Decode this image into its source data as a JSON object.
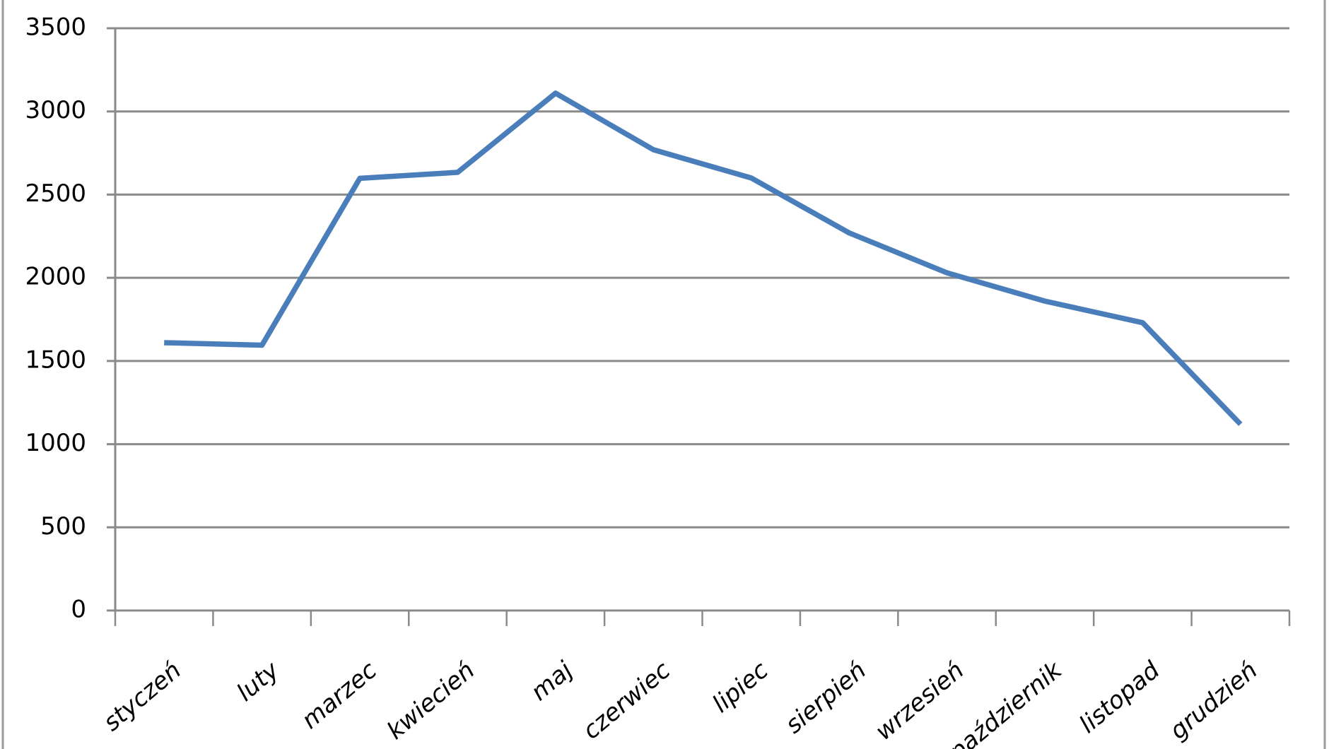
{
  "chart_data": {
    "type": "line",
    "categories": [
      "styczeń",
      "luty",
      "marzec",
      "kwiecień",
      "maj",
      "czerwiec",
      "lipiec",
      "sierpień",
      "wrzesień",
      "październik",
      "listopad",
      "grudzień"
    ],
    "series": [
      {
        "color": "#4a7ebb",
        "values": [
          1610,
          1595,
          2598,
          2634,
          3110,
          2770,
          2600,
          2270,
          2030,
          1860,
          1730,
          1120
        ]
      }
    ],
    "ylim": [
      0,
      3500
    ],
    "yticks": [
      0,
      500,
      1000,
      1500,
      2000,
      2500,
      3000,
      3500
    ],
    "grid": true
  }
}
